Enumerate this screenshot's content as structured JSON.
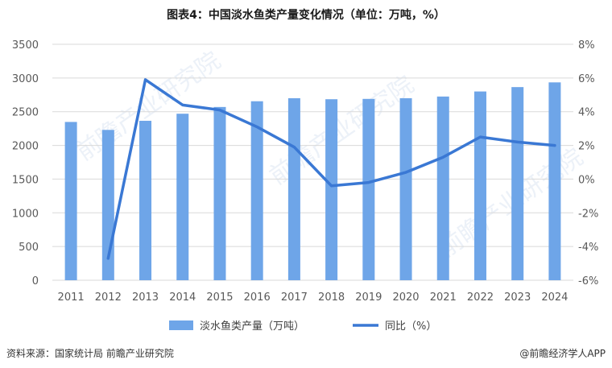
{
  "title": "图表4：中国淡水鱼类产量变化情况（单位：万吨，%）",
  "source": "资料来源：国家统计局 前瞻产业研究院",
  "credit": "@前瞻经济学人APP",
  "watermark": "前瞻产业研究院",
  "chart_data": {
    "type": "bar+line",
    "categories": [
      "2011",
      "2012",
      "2013",
      "2014",
      "2015",
      "2016",
      "2017",
      "2018",
      "2019",
      "2020",
      "2021",
      "2022",
      "2023",
      "2024"
    ],
    "series": [
      {
        "name": "淡水鱼类产量（万吨）",
        "type": "bar",
        "axis": "left",
        "color": "#6ea5e8",
        "values": [
          2348,
          2230,
          2365,
          2470,
          2570,
          2655,
          2700,
          2685,
          2690,
          2700,
          2725,
          2800,
          2865,
          2935
        ]
      },
      {
        "name": "同比（%）",
        "type": "line",
        "axis": "right",
        "color": "#3a78d4",
        "values": [
          null,
          -4.7,
          5.9,
          4.4,
          4.1,
          3.1,
          1.9,
          -0.4,
          -0.2,
          0.4,
          1.3,
          2.5,
          2.2,
          2.0
        ]
      }
    ],
    "y_left": {
      "min": 0,
      "max": 3500,
      "ticks": [
        0,
        500,
        1000,
        1500,
        2000,
        2500,
        3000,
        3500
      ]
    },
    "y_right": {
      "min": -6,
      "max": 8,
      "ticks": [
        "-6%",
        "-4%",
        "-2%",
        "0%",
        "2%",
        "4%",
        "6%",
        "8%"
      ]
    },
    "grid": true,
    "legend_position": "bottom"
  }
}
